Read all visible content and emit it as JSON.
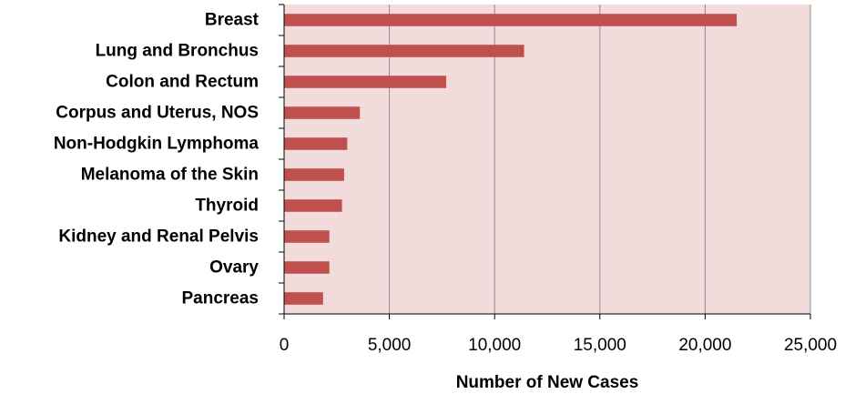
{
  "chart_data": {
    "type": "bar",
    "orientation": "horizontal",
    "categories": [
      "Breast",
      "Lung and Bronchus",
      "Colon and Rectum",
      "Corpus and Uterus, NOS",
      "Non-Hodgkin Lymphoma",
      "Melanoma of the Skin",
      "Thyroid",
      "Kidney and Renal Pelvis",
      "Ovary",
      "Pancreas"
    ],
    "values": [
      21500,
      11400,
      7700,
      3600,
      3000,
      2850,
      2750,
      2150,
      2150,
      1850
    ],
    "title": "",
    "xlabel": "Number of New Cases",
    "ylabel": "",
    "xlim": [
      0,
      25000
    ],
    "xticks": [
      0,
      5000,
      10000,
      15000,
      20000,
      25000
    ],
    "xtick_labels": [
      "0",
      "5,000",
      "10,000",
      "15,000",
      "20,000",
      "25,000"
    ],
    "grid": true,
    "legend": "none",
    "colors": {
      "bar": "#c0504d",
      "plot_background": "#f2dcdb",
      "gridline": "#8c8c8c",
      "axis": "#000000"
    }
  }
}
